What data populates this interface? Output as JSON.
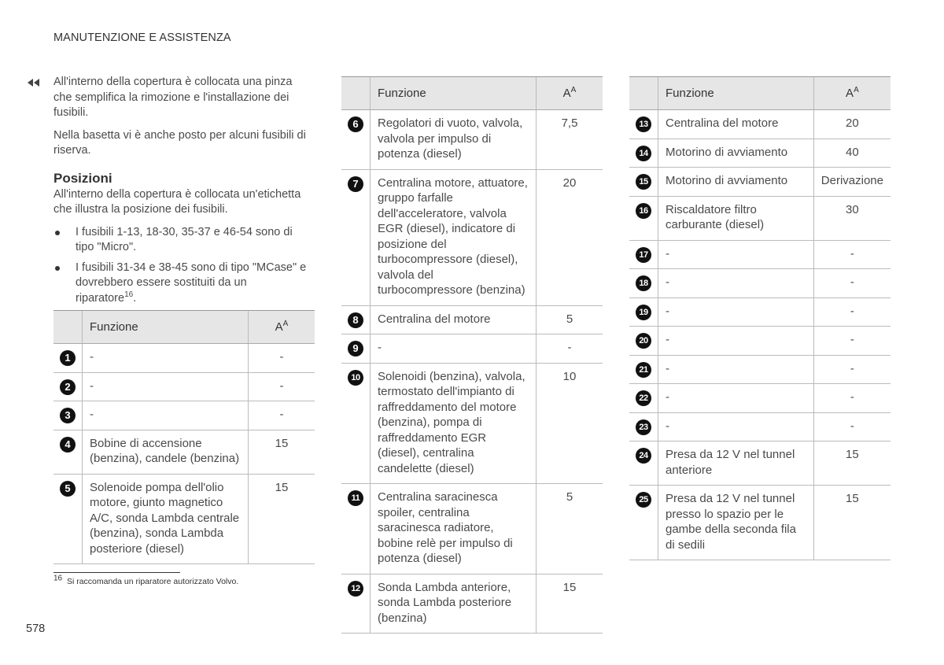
{
  "header": {
    "title": "MANUTENZIONE E ASSISTENZA"
  },
  "intro": {
    "paragraphs": [
      "All'interno della copertura è collocata una pinza che semplifica la rimozione e l'installazione dei fusibili.",
      "Nella basetta vi è anche posto per alcuni fusibili di riserva."
    ]
  },
  "section": {
    "heading": "Posizioni",
    "paragraph": "All'interno della copertura è collocata un'etichetta che illustra la posizione dei fusibili.",
    "bullets": [
      {
        "text": "I fusibili 1-13, 18-30, 35-37 e 46-54 sono di tipo \"Micro\"."
      },
      {
        "text": "I fusibili 31-34 e 38-45 sono di tipo \"MCase\" e dovrebbero essere sostituiti da un riparatore",
        "footnote_ref": "16",
        "text_end": "."
      }
    ]
  },
  "table_header": {
    "function": "Funzione",
    "unit": "A",
    "unit_sup": "A"
  },
  "tables": [
    {
      "rows": [
        {
          "number": 1,
          "function": "-",
          "amperage": "-"
        },
        {
          "number": 2,
          "function": "-",
          "amperage": "-"
        },
        {
          "number": 3,
          "function": "-",
          "amperage": "-"
        },
        {
          "number": 4,
          "function": "Bobine di accensione (benzina), candele (benzina)",
          "amperage": "15"
        },
        {
          "number": 5,
          "function": "Solenoide pompa dell'olio motore, giunto magnetico A/C, sonda Lambda centrale (benzina), sonda Lambda posteriore (diesel)",
          "amperage": "15"
        }
      ]
    },
    {
      "rows": [
        {
          "number": 6,
          "function": "Regolatori di vuoto, valvola, valvola per impulso di potenza (diesel)",
          "amperage": "7,5"
        },
        {
          "number": 7,
          "function": "Centralina motore, attuatore, gruppo farfalle dell'acceleratore, valvola EGR (diesel), indicatore di posizione del turbocompressore (diesel), valvola del turbocompressore (benzina)",
          "amperage": "20"
        },
        {
          "number": 8,
          "function": "Centralina del motore",
          "amperage": "5"
        },
        {
          "number": 9,
          "function": "-",
          "amperage": "-"
        },
        {
          "number": 10,
          "function": "Solenoidi (benzina), valvola, termostato dell'impianto di raffreddamento del motore (benzina), pompa di raffreddamento EGR (diesel), centralina candelette (diesel)",
          "amperage": "10"
        },
        {
          "number": 11,
          "function": "Centralina saracinesca spoiler, centralina saracinesca radiatore, bobine relè per impulso di potenza (diesel)",
          "amperage": "5"
        },
        {
          "number": 12,
          "function": "Sonda Lambda anteriore, sonda Lambda posteriore (benzina)",
          "amperage": "15"
        }
      ]
    },
    {
      "rows": [
        {
          "number": 13,
          "function": "Centralina del motore",
          "amperage": "20"
        },
        {
          "number": 14,
          "function": "Motorino di avviamento",
          "amperage": "40"
        },
        {
          "number": 15,
          "function": "Motorino di avviamento",
          "amperage": "Derivazione"
        },
        {
          "number": 16,
          "function": "Riscaldatore filtro carburante (diesel)",
          "amperage": "30"
        },
        {
          "number": 17,
          "function": "-",
          "amperage": "-"
        },
        {
          "number": 18,
          "function": "-",
          "amperage": "-"
        },
        {
          "number": 19,
          "function": "-",
          "amperage": "-"
        },
        {
          "number": 20,
          "function": "-",
          "amperage": "-"
        },
        {
          "number": 21,
          "function": "-",
          "amperage": "-"
        },
        {
          "number": 22,
          "function": "-",
          "amperage": "-"
        },
        {
          "number": 23,
          "function": "-",
          "amperage": "-"
        },
        {
          "number": 24,
          "function": "Presa da 12 V nel tunnel anteriore",
          "amperage": "15"
        },
        {
          "number": 25,
          "function": "Presa da 12 V nel tunnel presso lo spazio per le gambe della seconda fila di sedili",
          "amperage": "15"
        }
      ]
    }
  ],
  "footnote": {
    "number": "16",
    "text": "Si raccomanda un riparatore autorizzato Volvo."
  },
  "page_number": "578"
}
